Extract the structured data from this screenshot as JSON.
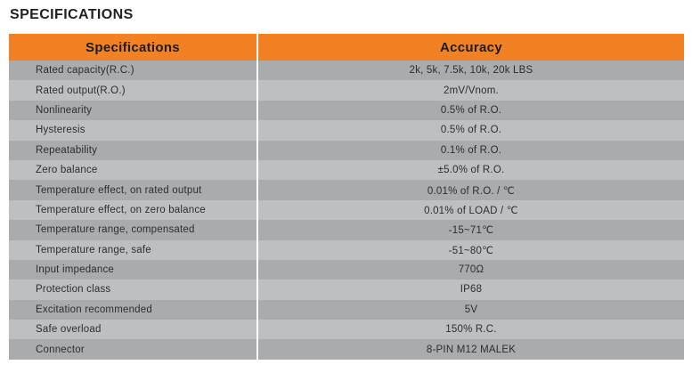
{
  "page": {
    "title": "SPECIFICATIONS"
  },
  "table": {
    "header": {
      "spec": "Specifications",
      "value": "Accuracy"
    },
    "rows": [
      {
        "spec": "Rated capacity(R.C.)",
        "value": "2k, 5k, 7.5k, 10k, 20k LBS"
      },
      {
        "spec": "Rated output(R.O.)",
        "value": "2mV/Vnom."
      },
      {
        "spec": "Nonlinearity",
        "value": "0.5% of R.O."
      },
      {
        "spec": "Hysteresis",
        "value": "0.5% of R.O."
      },
      {
        "spec": "Repeatability",
        "value": "0.1% of R.O."
      },
      {
        "spec": "Zero balance",
        "value": "±5.0% of R.O."
      },
      {
        "spec": "Temperature effect, on rated output",
        "value": "0.01% of R.O. / ℃"
      },
      {
        "spec": "Temperature effect, on zero balance",
        "value": "0.01% of LOAD / ℃"
      },
      {
        "spec": "Temperature range, compensated",
        "value": "-15~71℃"
      },
      {
        "spec": "Temperature range, safe",
        "value": "-51~80℃"
      },
      {
        "spec": "Input impedance",
        "value": "770Ω"
      },
      {
        "spec": "Protection class",
        "value": "IP68"
      },
      {
        "spec": "Excitation recommended",
        "value": "5V"
      },
      {
        "spec": "Safe overload",
        "value": "150% R.C."
      },
      {
        "spec": "Connector",
        "value": "8-PIN M12 MALEK"
      }
    ],
    "colors": {
      "header_bg": "#f28123",
      "row_light": "#bdbfc1",
      "row_dark": "#a9abad",
      "title_text": "#231f20"
    }
  }
}
